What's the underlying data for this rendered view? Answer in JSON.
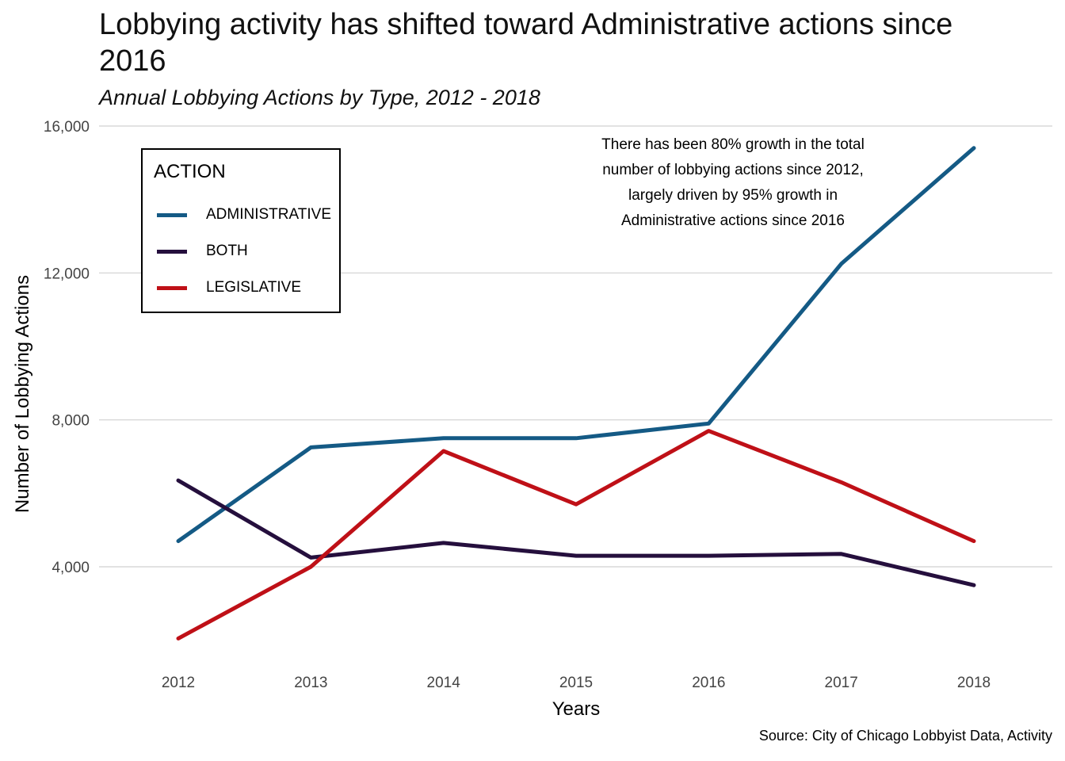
{
  "title": "Lobbying activity has shifted toward Administrative actions since 2016",
  "subtitle": "Annual Lobbying Actions by Type, 2012 - 2018",
  "source": "Source: City of Chicago Lobbyist Data, Activity",
  "annotation": [
    "There has been 80% growth in the total",
    "number of lobbying actions since 2012,",
    "largely driven by 95% growth in",
    "Administrative actions since 2016"
  ],
  "chart_data": {
    "type": "line",
    "title": "Lobbying activity has shifted toward Administrative actions since 2016",
    "subtitle": "Annual Lobbying Actions by Type, 2012 - 2018",
    "xlabel": "Years",
    "ylabel": "Number of Lobbying Actions",
    "x": [
      2012,
      2013,
      2014,
      2015,
      2016,
      2017,
      2018
    ],
    "x_tick_labels": [
      "2012",
      "2013",
      "2014",
      "2015",
      "2016",
      "2017",
      "2018"
    ],
    "y_ticks": [
      4000,
      8000,
      12000,
      16000
    ],
    "y_tick_labels": [
      "4,000",
      "8,000",
      "12,000",
      "16,000"
    ],
    "ylim": [
      1300,
      16000
    ],
    "grid": "horizontal major lines",
    "legend_title": "ACTION",
    "legend_position": "top-left",
    "series": [
      {
        "name": "ADMINISTRATIVE",
        "color": "#145a85",
        "values": [
          4700,
          7250,
          7500,
          7500,
          7900,
          12250,
          15400
        ]
      },
      {
        "name": "BOTH",
        "color": "#250f3d",
        "values": [
          6350,
          4250,
          4650,
          4300,
          4300,
          4350,
          3500
        ]
      },
      {
        "name": "LEGISLATIVE",
        "color": "#bf1017",
        "values": [
          2050,
          4000,
          7150,
          5700,
          7700,
          6300,
          4700
        ]
      }
    ]
  }
}
